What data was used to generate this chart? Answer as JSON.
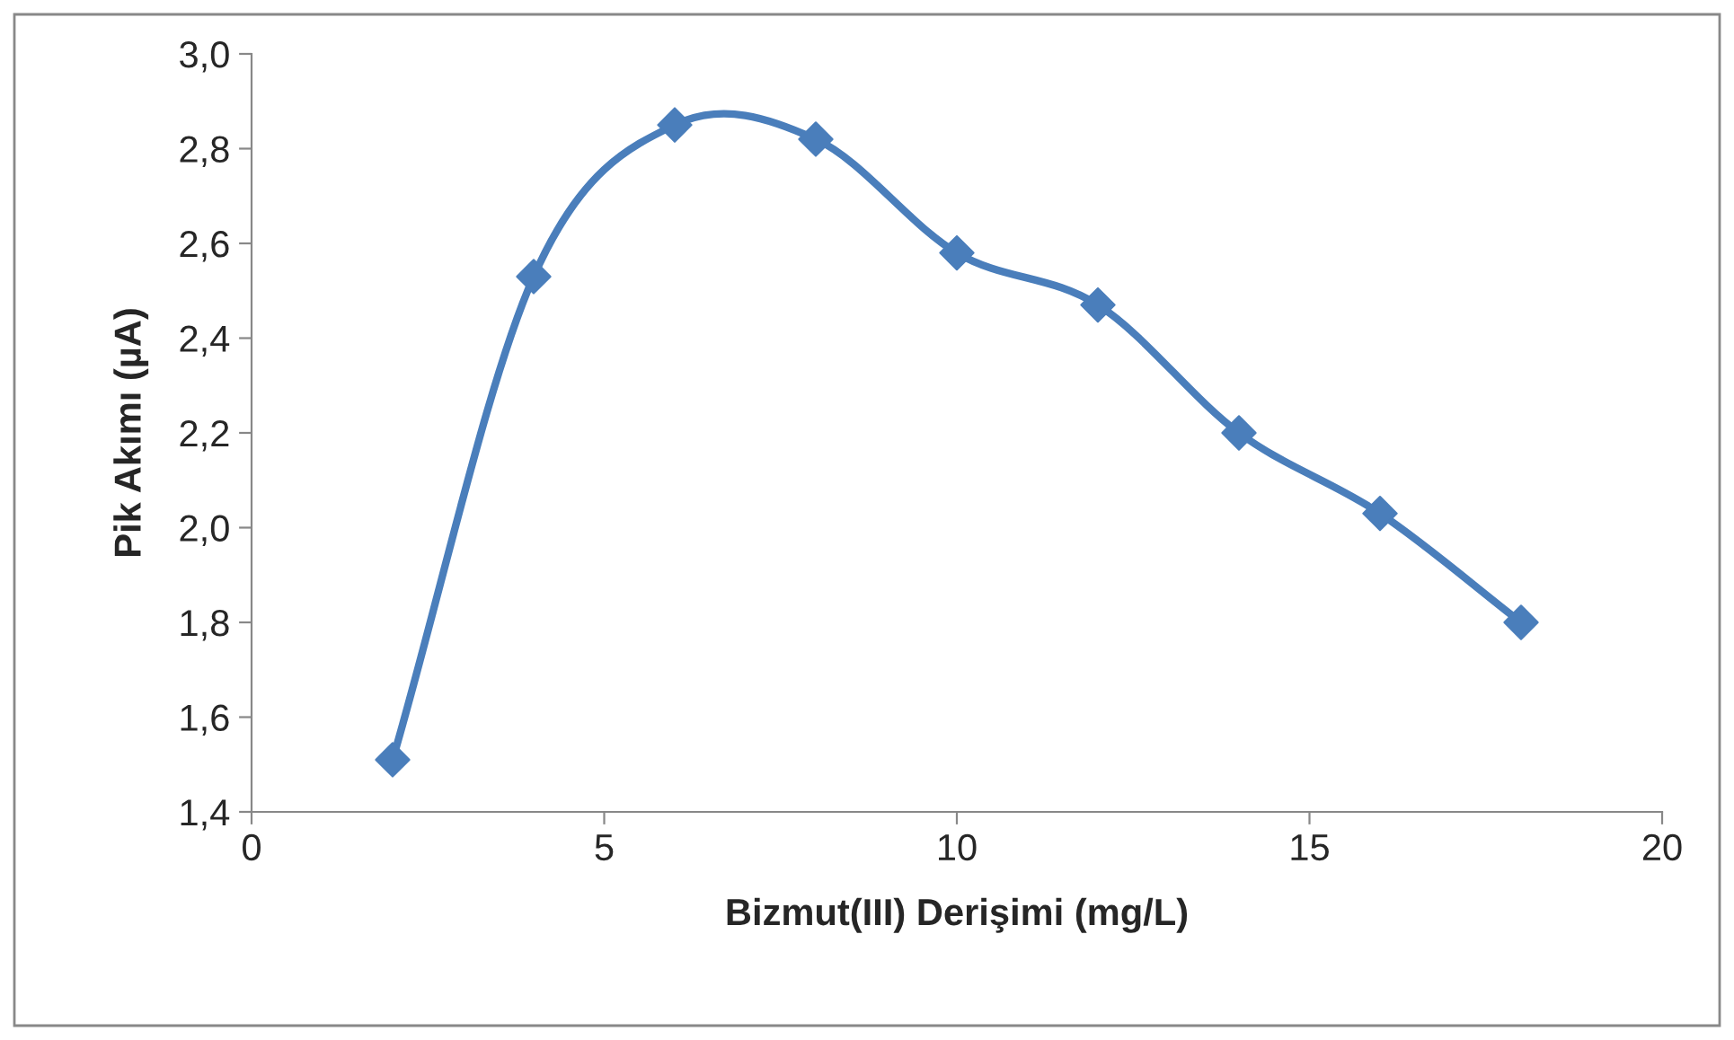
{
  "chart_data": {
    "type": "line",
    "xlabel": "Bizmut(III) Derişimi (mg/L)",
    "ylabel": "Pik Akımı (µA)",
    "x": [
      2,
      4,
      6,
      8,
      10,
      12,
      14,
      16,
      18
    ],
    "series": [
      {
        "color": "#4a7ebb",
        "values": [
          1.51,
          2.53,
          2.85,
          2.82,
          2.58,
          2.47,
          2.2,
          2.03,
          1.8
        ]
      }
    ],
    "xlim": [
      0,
      20
    ],
    "xticks": [
      0,
      5,
      10,
      15,
      20
    ],
    "ylim": [
      1.4,
      3.0
    ],
    "yticks": [
      {
        "value": 1.4,
        "label": "1,4"
      },
      {
        "value": 1.6,
        "label": "1,6"
      },
      {
        "value": 1.8,
        "label": "1,8"
      },
      {
        "value": 2.0,
        "label": "2,0"
      },
      {
        "value": 2.2,
        "label": "2,2"
      },
      {
        "value": 2.4,
        "label": "2,4"
      },
      {
        "value": 2.6,
        "label": "2,6"
      },
      {
        "value": 2.8,
        "label": "2,8"
      },
      {
        "value": 3.0,
        "label": "3,0"
      }
    ],
    "marker": "diamond",
    "line_style": "solid",
    "grid": false,
    "legend": false
  }
}
